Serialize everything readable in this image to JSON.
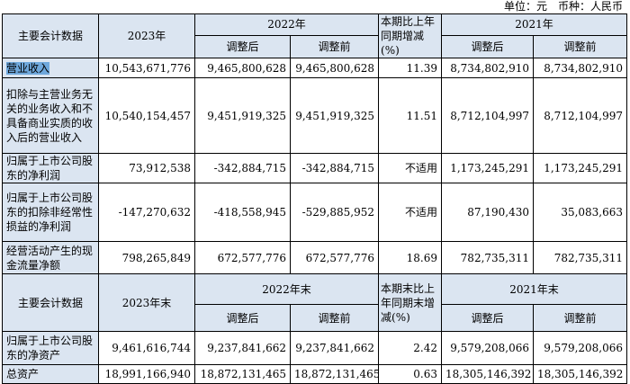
{
  "unit": "单位：元　币种：人民币",
  "section1": {
    "header": {
      "item": "主要会计数据",
      "current": "2023年",
      "prior": "2022年",
      "adjusted": "调整后",
      "before": "调整前",
      "change": "本期比上年同期增减(%)",
      "earlier": "2021年",
      "adjusted2": "调整后",
      "before2": "调整前"
    },
    "rows": [
      [
        "营业收入",
        "10,543,671,776",
        "9,465,800,628",
        "9,465,800,628",
        "11.39",
        "8,734,802,910",
        "8,734,802,910"
      ],
      [
        "扣除与主营业务无关的业务收入和不具备商业实质的收入后的营业收入",
        "10,540,154,457",
        "9,451,919,325",
        "9,451,919,325",
        "11.51",
        "8,712,104,997",
        "8,712,104,997"
      ],
      [
        "归属于上市公司股东的净利润",
        "73,912,538",
        "-342,884,715",
        "-342,884,715",
        "不适用",
        "1,173,245,291",
        "1,173,245,291"
      ],
      [
        "归属于上市公司股东的扣除非经常性损益的净利润",
        "-147,270,632",
        "-418,558,945",
        "-529,885,952",
        "不适用",
        "87,190,430",
        "35,083,663"
      ],
      [
        "经营活动产生的现金流量净额",
        "798,265,849",
        "672,577,776",
        "672,577,776",
        "18.69",
        "782,735,311",
        "782,735,311"
      ]
    ]
  },
  "section2": {
    "header": {
      "item": "主要会计数据",
      "current": "2023年末",
      "prior": "2022年末",
      "adjusted": "调整后",
      "before": "调整前",
      "change": "本期末比上年同期末增减(%)",
      "earlier": "2021年末",
      "adjusted2": "调整后",
      "before2": "调整前"
    },
    "rows": [
      [
        "归属于上市公司股东的净资产",
        "9,461,616,744",
        "9,237,841,662",
        "9,237,841,662",
        "2.42",
        "9,579,208,066",
        "9,579,208,066"
      ],
      [
        "总资产",
        "18,991,166,940",
        "18,872,131,465",
        "18,872,131,465",
        "0.63",
        "18,305,146,392",
        "18,305,146,392"
      ]
    ]
  }
}
